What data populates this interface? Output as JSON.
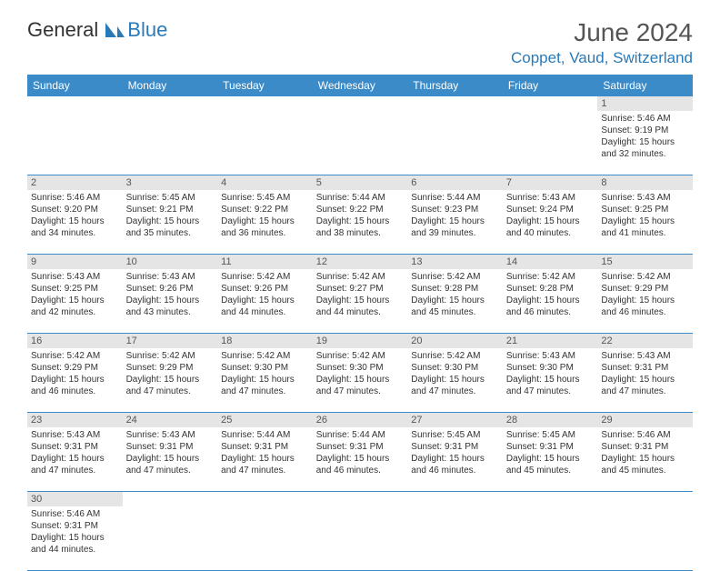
{
  "logo": {
    "text1": "General",
    "text2": "Blue"
  },
  "title": "June 2024",
  "location": "Coppet, Vaud, Switzerland",
  "colors": {
    "header_bg": "#3b8bc9",
    "header_fg": "#ffffff",
    "accent": "#2a7ab8",
    "daynum_bg": "#e5e5e5",
    "text": "#333333",
    "border": "#3b8bc9"
  },
  "weekdays": [
    "Sunday",
    "Monday",
    "Tuesday",
    "Wednesday",
    "Thursday",
    "Friday",
    "Saturday"
  ],
  "weeks": [
    [
      null,
      null,
      null,
      null,
      null,
      null,
      {
        "n": "1",
        "sr": "Sunrise: 5:46 AM",
        "ss": "Sunset: 9:19 PM",
        "d1": "Daylight: 15 hours",
        "d2": "and 32 minutes."
      }
    ],
    [
      {
        "n": "2",
        "sr": "Sunrise: 5:46 AM",
        "ss": "Sunset: 9:20 PM",
        "d1": "Daylight: 15 hours",
        "d2": "and 34 minutes."
      },
      {
        "n": "3",
        "sr": "Sunrise: 5:45 AM",
        "ss": "Sunset: 9:21 PM",
        "d1": "Daylight: 15 hours",
        "d2": "and 35 minutes."
      },
      {
        "n": "4",
        "sr": "Sunrise: 5:45 AM",
        "ss": "Sunset: 9:22 PM",
        "d1": "Daylight: 15 hours",
        "d2": "and 36 minutes."
      },
      {
        "n": "5",
        "sr": "Sunrise: 5:44 AM",
        "ss": "Sunset: 9:22 PM",
        "d1": "Daylight: 15 hours",
        "d2": "and 38 minutes."
      },
      {
        "n": "6",
        "sr": "Sunrise: 5:44 AM",
        "ss": "Sunset: 9:23 PM",
        "d1": "Daylight: 15 hours",
        "d2": "and 39 minutes."
      },
      {
        "n": "7",
        "sr": "Sunrise: 5:43 AM",
        "ss": "Sunset: 9:24 PM",
        "d1": "Daylight: 15 hours",
        "d2": "and 40 minutes."
      },
      {
        "n": "8",
        "sr": "Sunrise: 5:43 AM",
        "ss": "Sunset: 9:25 PM",
        "d1": "Daylight: 15 hours",
        "d2": "and 41 minutes."
      }
    ],
    [
      {
        "n": "9",
        "sr": "Sunrise: 5:43 AM",
        "ss": "Sunset: 9:25 PM",
        "d1": "Daylight: 15 hours",
        "d2": "and 42 minutes."
      },
      {
        "n": "10",
        "sr": "Sunrise: 5:43 AM",
        "ss": "Sunset: 9:26 PM",
        "d1": "Daylight: 15 hours",
        "d2": "and 43 minutes."
      },
      {
        "n": "11",
        "sr": "Sunrise: 5:42 AM",
        "ss": "Sunset: 9:26 PM",
        "d1": "Daylight: 15 hours",
        "d2": "and 44 minutes."
      },
      {
        "n": "12",
        "sr": "Sunrise: 5:42 AM",
        "ss": "Sunset: 9:27 PM",
        "d1": "Daylight: 15 hours",
        "d2": "and 44 minutes."
      },
      {
        "n": "13",
        "sr": "Sunrise: 5:42 AM",
        "ss": "Sunset: 9:28 PM",
        "d1": "Daylight: 15 hours",
        "d2": "and 45 minutes."
      },
      {
        "n": "14",
        "sr": "Sunrise: 5:42 AM",
        "ss": "Sunset: 9:28 PM",
        "d1": "Daylight: 15 hours",
        "d2": "and 46 minutes."
      },
      {
        "n": "15",
        "sr": "Sunrise: 5:42 AM",
        "ss": "Sunset: 9:29 PM",
        "d1": "Daylight: 15 hours",
        "d2": "and 46 minutes."
      }
    ],
    [
      {
        "n": "16",
        "sr": "Sunrise: 5:42 AM",
        "ss": "Sunset: 9:29 PM",
        "d1": "Daylight: 15 hours",
        "d2": "and 46 minutes."
      },
      {
        "n": "17",
        "sr": "Sunrise: 5:42 AM",
        "ss": "Sunset: 9:29 PM",
        "d1": "Daylight: 15 hours",
        "d2": "and 47 minutes."
      },
      {
        "n": "18",
        "sr": "Sunrise: 5:42 AM",
        "ss": "Sunset: 9:30 PM",
        "d1": "Daylight: 15 hours",
        "d2": "and 47 minutes."
      },
      {
        "n": "19",
        "sr": "Sunrise: 5:42 AM",
        "ss": "Sunset: 9:30 PM",
        "d1": "Daylight: 15 hours",
        "d2": "and 47 minutes."
      },
      {
        "n": "20",
        "sr": "Sunrise: 5:42 AM",
        "ss": "Sunset: 9:30 PM",
        "d1": "Daylight: 15 hours",
        "d2": "and 47 minutes."
      },
      {
        "n": "21",
        "sr": "Sunrise: 5:43 AM",
        "ss": "Sunset: 9:30 PM",
        "d1": "Daylight: 15 hours",
        "d2": "and 47 minutes."
      },
      {
        "n": "22",
        "sr": "Sunrise: 5:43 AM",
        "ss": "Sunset: 9:31 PM",
        "d1": "Daylight: 15 hours",
        "d2": "and 47 minutes."
      }
    ],
    [
      {
        "n": "23",
        "sr": "Sunrise: 5:43 AM",
        "ss": "Sunset: 9:31 PM",
        "d1": "Daylight: 15 hours",
        "d2": "and 47 minutes."
      },
      {
        "n": "24",
        "sr": "Sunrise: 5:43 AM",
        "ss": "Sunset: 9:31 PM",
        "d1": "Daylight: 15 hours",
        "d2": "and 47 minutes."
      },
      {
        "n": "25",
        "sr": "Sunrise: 5:44 AM",
        "ss": "Sunset: 9:31 PM",
        "d1": "Daylight: 15 hours",
        "d2": "and 47 minutes."
      },
      {
        "n": "26",
        "sr": "Sunrise: 5:44 AM",
        "ss": "Sunset: 9:31 PM",
        "d1": "Daylight: 15 hours",
        "d2": "and 46 minutes."
      },
      {
        "n": "27",
        "sr": "Sunrise: 5:45 AM",
        "ss": "Sunset: 9:31 PM",
        "d1": "Daylight: 15 hours",
        "d2": "and 46 minutes."
      },
      {
        "n": "28",
        "sr": "Sunrise: 5:45 AM",
        "ss": "Sunset: 9:31 PM",
        "d1": "Daylight: 15 hours",
        "d2": "and 45 minutes."
      },
      {
        "n": "29",
        "sr": "Sunrise: 5:46 AM",
        "ss": "Sunset: 9:31 PM",
        "d1": "Daylight: 15 hours",
        "d2": "and 45 minutes."
      }
    ],
    [
      {
        "n": "30",
        "sr": "Sunrise: 5:46 AM",
        "ss": "Sunset: 9:31 PM",
        "d1": "Daylight: 15 hours",
        "d2": "and 44 minutes."
      },
      null,
      null,
      null,
      null,
      null,
      null
    ]
  ]
}
